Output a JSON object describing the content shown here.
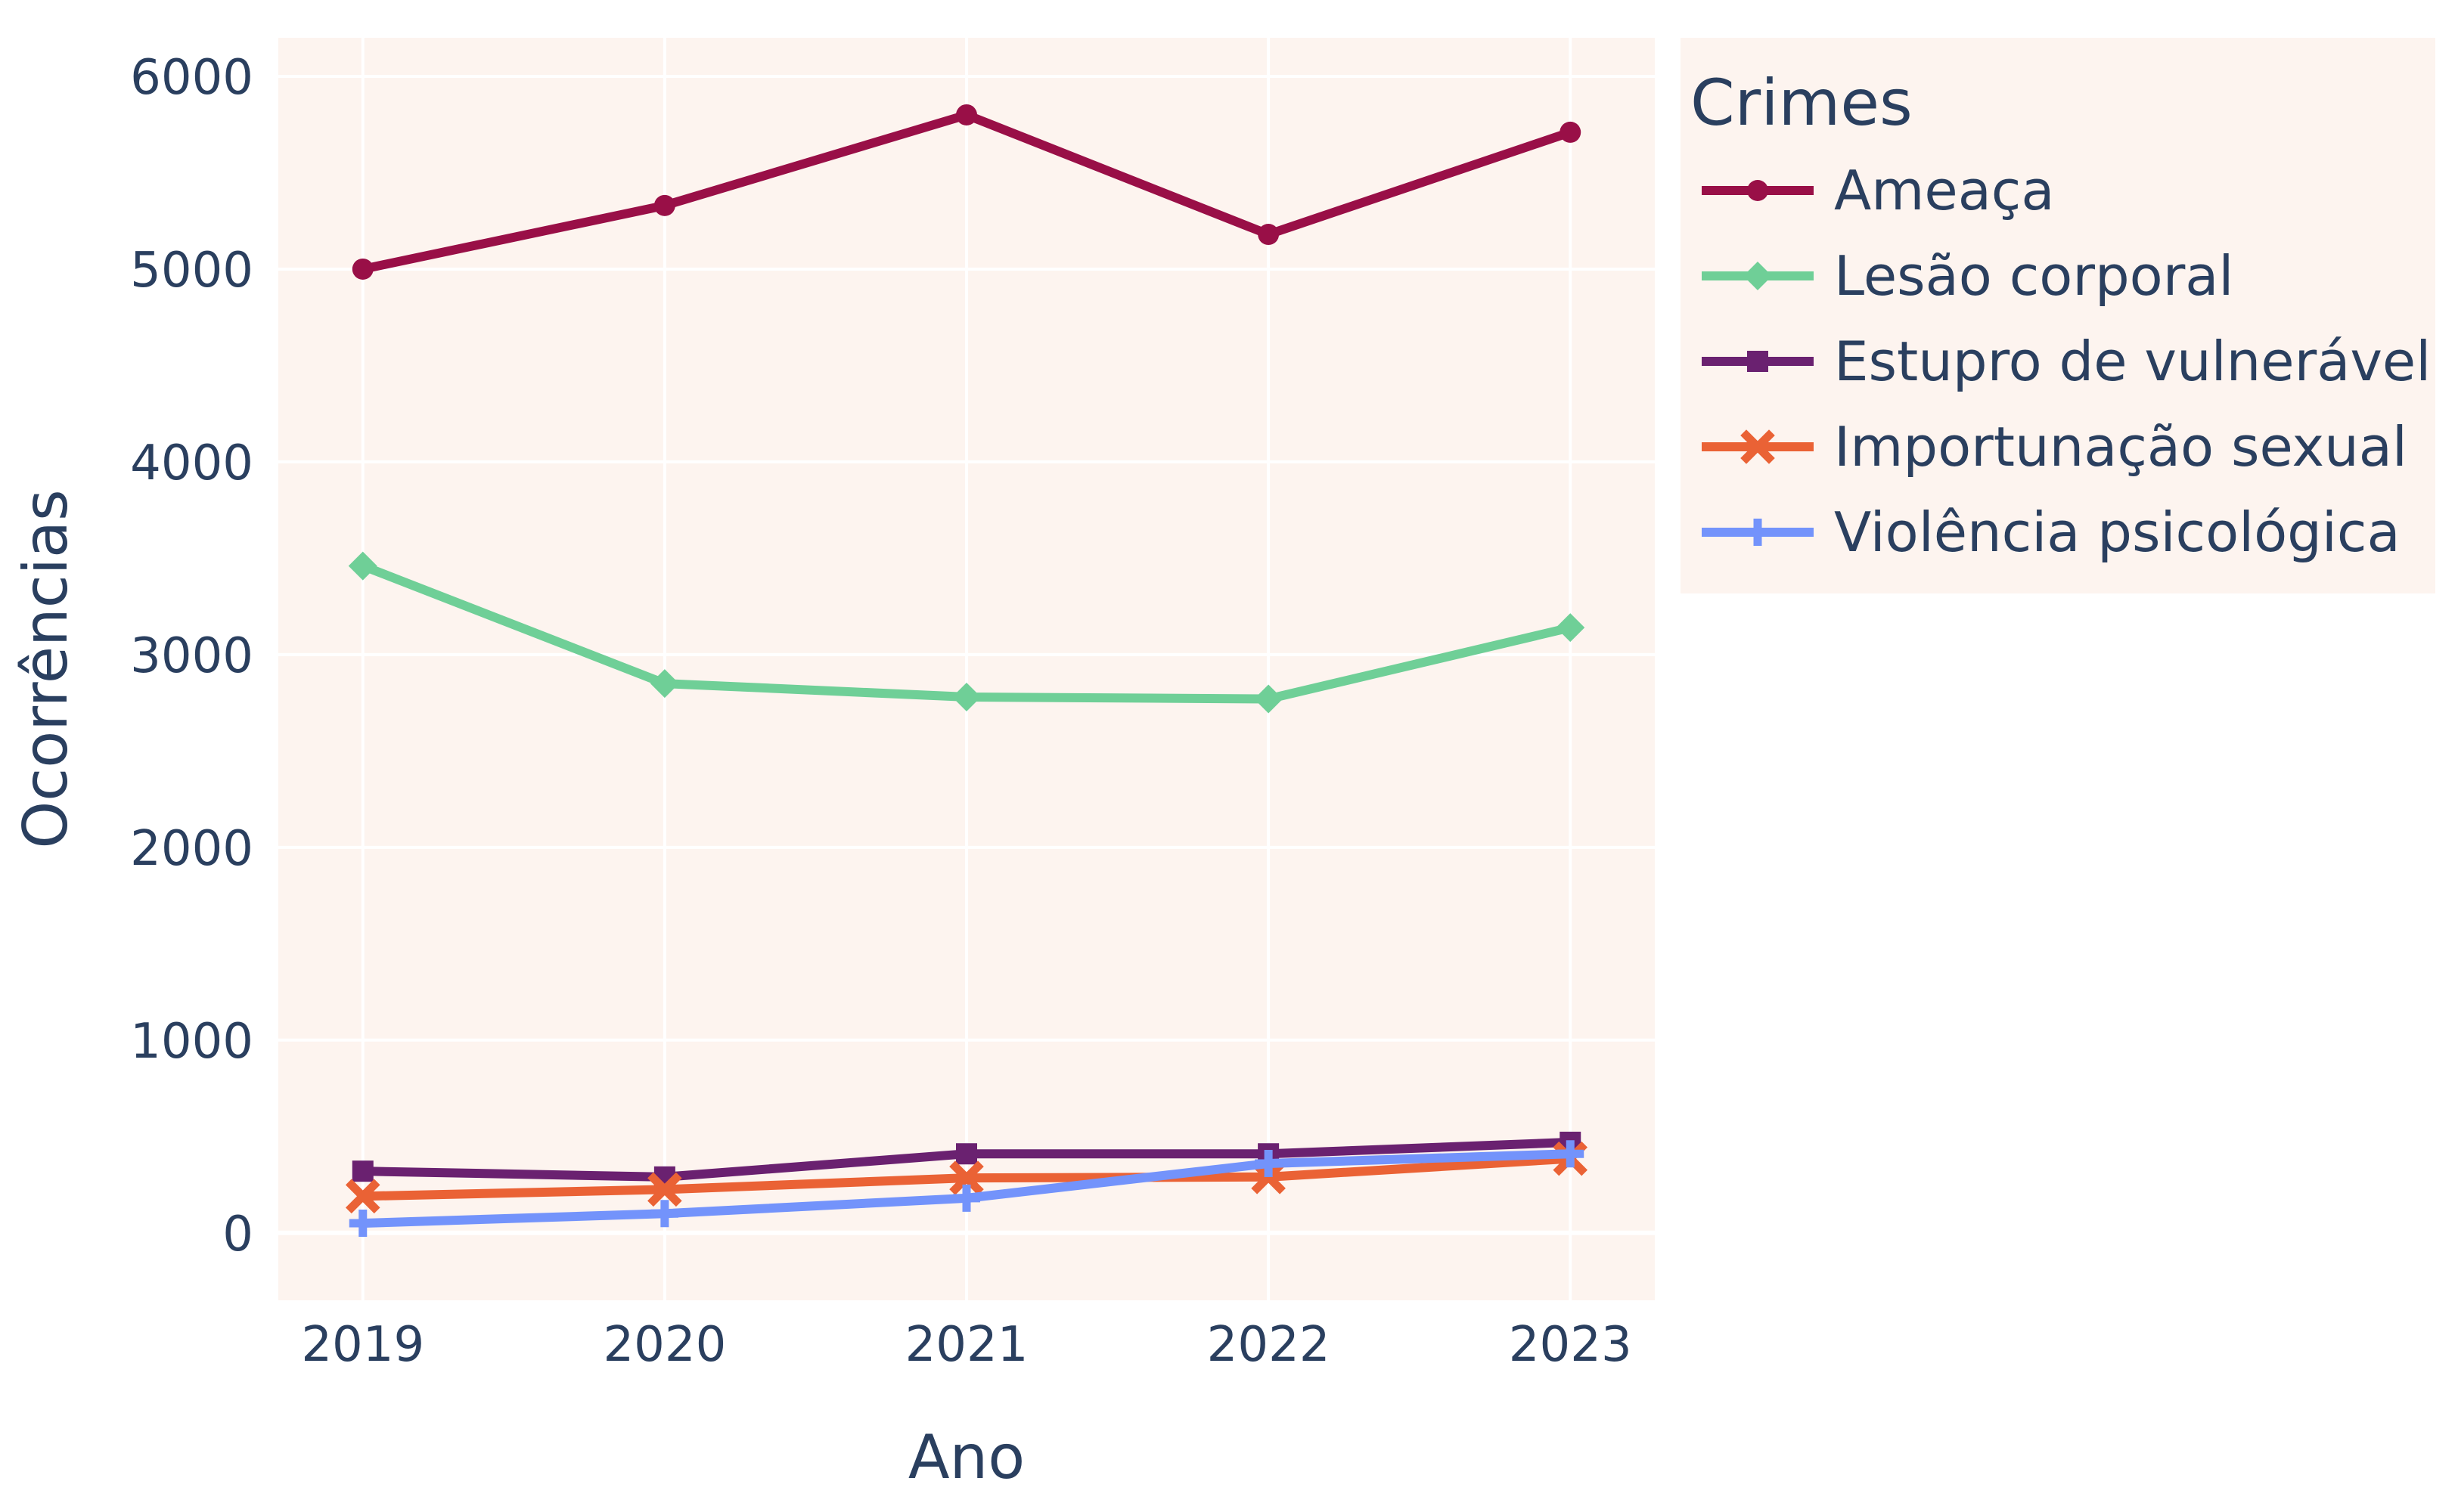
{
  "chart_data": {
    "type": "line",
    "title": "",
    "xlabel": "Ano",
    "ylabel": "Ocorrências",
    "x": [
      "2019",
      "2020",
      "2021",
      "2022",
      "2023"
    ],
    "xlim": [
      2018.72,
      2023.28
    ],
    "ylim": [
      -350,
      6200
    ],
    "yticks": [
      0,
      1000,
      2000,
      3000,
      4000,
      5000,
      6000
    ],
    "grid": true,
    "legend": {
      "title": "Crimes",
      "placement": "right"
    },
    "plot_bg": "#fdf4ef",
    "series": [
      {
        "name": "Ameaça",
        "color": "#990f47",
        "marker": "circle",
        "values": [
          5000,
          5330,
          5800,
          5180,
          5710
        ]
      },
      {
        "name": "Lesão corporal",
        "color": "#6fcf97",
        "marker": "diamond",
        "values": [
          3460,
          2850,
          2780,
          2770,
          3140
        ]
      },
      {
        "name": "Estupro de vulnerável",
        "color": "#6a2170",
        "marker": "square",
        "values": [
          320,
          290,
          410,
          410,
          470
        ]
      },
      {
        "name": "Importunação sexual",
        "color": "#ea6235",
        "marker": "x",
        "values": [
          190,
          225,
          285,
          290,
          385
        ]
      },
      {
        "name": "Violência psicológica",
        "color": "#7393fb",
        "marker": "cross",
        "values": [
          50,
          100,
          180,
          360,
          410
        ]
      }
    ]
  }
}
